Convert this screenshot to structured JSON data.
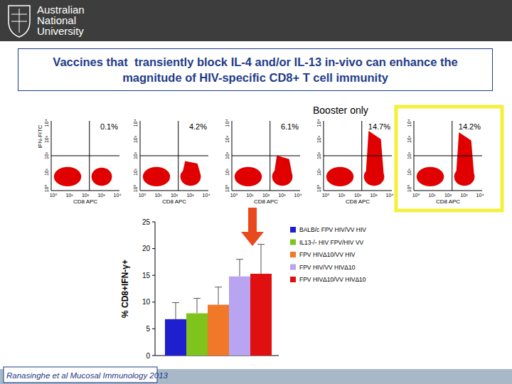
{
  "header": {
    "logo": [
      "Australian",
      "National",
      "University"
    ],
    "title": "Vaccines that  transiently block IL-4 and/or IL-13 in-vivo can enhance the magnitude of HIV-specific CD8+ T cell immunity"
  },
  "annotation": "Booster only",
  "dot_plots": {
    "x_label": "CD8 APC",
    "y_label": "IFN-FITC",
    "ticks": [
      "10⁰",
      "10¹",
      "10²",
      "10³",
      "10⁴"
    ],
    "panels": [
      {
        "value": 0.1,
        "label": "0.1%"
      },
      {
        "value": 4.2,
        "label": "4.2%"
      },
      {
        "value": 6.1,
        "label": "6.1%"
      },
      {
        "value": 14.7,
        "label": "14.7%"
      },
      {
        "value": 14.2,
        "label": "14.2%"
      }
    ]
  },
  "chart_data": {
    "type": "bar",
    "y_label": "% CD8+IFN-γ+",
    "categories": [
      null
    ],
    "ylim": [
      0,
      25
    ],
    "yticks": [
      0,
      5,
      10,
      15,
      20,
      25
    ],
    "legend": "right",
    "series": [
      {
        "name": "BALB/c FPV HIV/VV HIV",
        "color": "#1f1fd0",
        "values": [
          6.8
        ],
        "errors": [
          3.1
        ]
      },
      {
        "name": "IL13-/- HIV FPV/HIV VV",
        "color": "#7fc31c",
        "values": [
          7.9
        ],
        "errors": [
          2.8
        ]
      },
      {
        "name": "FPV HIVΔ10/VV HIV",
        "color": "#f07828",
        "values": [
          9.5
        ],
        "errors": [
          3.3
        ]
      },
      {
        "name": "FPV HIV/VV HIVΔ10",
        "color": "#b8a4f0",
        "values": [
          14.8
        ],
        "errors": [
          3.2
        ]
      },
      {
        "name": "FPV HIVΔ10/VV HIVΔ10",
        "color": "#e01010",
        "values": [
          15.3
        ],
        "errors": [
          5.5
        ]
      }
    ]
  },
  "citation": "Ranasinghe et al Mucosal Immunology 2013"
}
